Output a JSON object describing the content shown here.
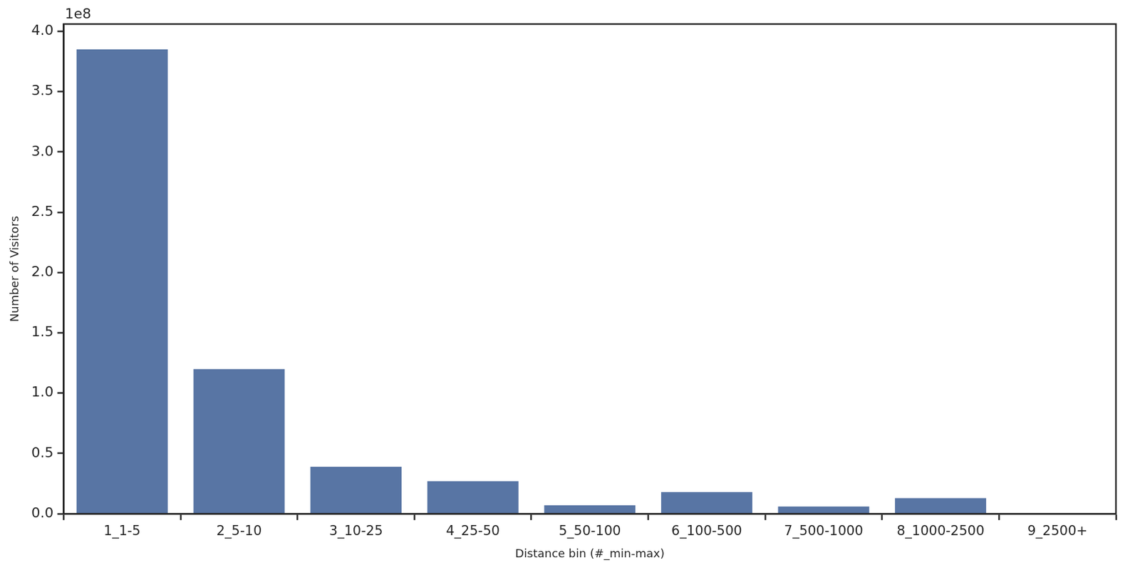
{
  "chart_data": {
    "type": "bar",
    "x_label": "Distance bin (#_min-max)",
    "y_label": "Number of Visitors",
    "annotations": [
      "1e8"
    ],
    "categories": [
      "1_1-5",
      "2_5-10",
      "3_10-25",
      "4_25-50",
      "5_50-100",
      "6_100-500",
      "7_500-1000",
      "8_1000-2500",
      "9_2500+"
    ],
    "values": [
      3.85,
      1.2,
      0.39,
      0.27,
      0.07,
      0.18,
      0.06,
      0.13,
      0
    ],
    "color": "#5875a4",
    "ylim": [
      0,
      4.06
    ],
    "yticks": [
      {
        "value": 0,
        "label": "0.0"
      },
      {
        "value": 0.5,
        "label": "0.5"
      },
      {
        "value": 1,
        "label": "1.0"
      },
      {
        "value": 1.5,
        "label": "1.5"
      },
      {
        "value": 2,
        "label": "2.0"
      },
      {
        "value": 2.5,
        "label": "2.5"
      },
      {
        "value": 3,
        "label": "3.0"
      },
      {
        "value": 3.5,
        "label": "3.5"
      },
      {
        "value": 4,
        "label": "4.0"
      }
    ],
    "grid": false
  }
}
